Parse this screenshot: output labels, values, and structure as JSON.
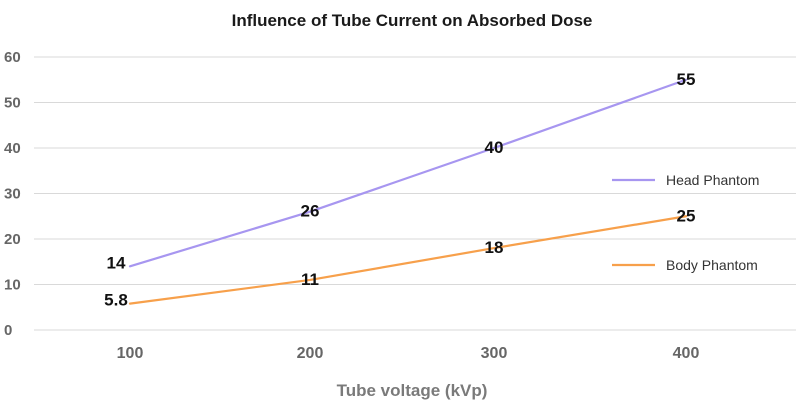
{
  "chart_data": {
    "type": "line",
    "title": "Influence of Tube Current on Absorbed Dose",
    "xlabel": "Tube voltage (kVp)",
    "ylabel": "",
    "categories": [
      "100",
      "200",
      "300",
      "400"
    ],
    "yticks": [
      "0",
      "10",
      "20",
      "30",
      "40",
      "50",
      "60"
    ],
    "ylim": [
      0,
      60
    ],
    "grid": true,
    "legend_position": "right",
    "series": [
      {
        "name": "Head Phantom",
        "color": "#a796f0",
        "values": [
          14,
          26,
          40,
          55
        ],
        "labels": [
          "14",
          "26",
          "40",
          "55"
        ]
      },
      {
        "name": "Body Phantom",
        "color": "#f7a04b",
        "values": [
          5.8,
          11,
          18,
          25
        ],
        "labels": [
          "5.8",
          "11",
          "18",
          "25"
        ]
      }
    ]
  }
}
